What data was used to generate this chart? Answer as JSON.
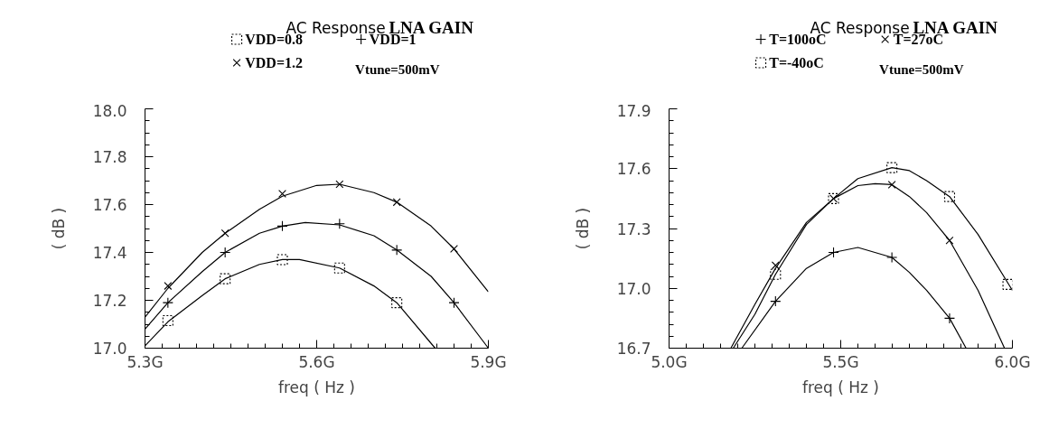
{
  "chart_data": [
    {
      "type": "line",
      "title": "AC Response",
      "subtitle": "LNA GAIN",
      "xlabel": "freq ( Hz )",
      "ylabel": "( dB )",
      "annotations": [
        "Vtune=500mV"
      ],
      "xlim": [
        5.3,
        5.9
      ],
      "ylim": [
        17.0,
        18.0
      ],
      "grid": false,
      "legend": "top",
      "xticks": [
        {
          "value": 5.3,
          "label": "5.3G"
        },
        {
          "value": 5.33,
          "label": null
        },
        {
          "value": 5.36,
          "label": null
        },
        {
          "value": 5.39,
          "label": null
        },
        {
          "value": 5.42,
          "label": null
        },
        {
          "value": 5.45,
          "label": null
        },
        {
          "value": 5.48,
          "label": null
        },
        {
          "value": 5.51,
          "label": null
        },
        {
          "value": 5.54,
          "label": null
        },
        {
          "value": 5.57,
          "label": null
        },
        {
          "value": 5.6,
          "label": "5.6G"
        },
        {
          "value": 5.63,
          "label": null
        },
        {
          "value": 5.66,
          "label": null
        },
        {
          "value": 5.69,
          "label": null
        },
        {
          "value": 5.72,
          "label": null
        },
        {
          "value": 5.75,
          "label": null
        },
        {
          "value": 5.78,
          "label": null
        },
        {
          "value": 5.81,
          "label": null
        },
        {
          "value": 5.84,
          "label": null
        },
        {
          "value": 5.87,
          "label": null
        },
        {
          "value": 5.9,
          "label": "5.9G"
        }
      ],
      "yticks": [
        {
          "value": 17.0,
          "label": "17.0"
        },
        {
          "value": 17.05,
          "label": null
        },
        {
          "value": 17.1,
          "label": null
        },
        {
          "value": 17.15,
          "label": null
        },
        {
          "value": 17.2,
          "label": "17.2"
        },
        {
          "value": 17.25,
          "label": null
        },
        {
          "value": 17.3,
          "label": null
        },
        {
          "value": 17.35,
          "label": null
        },
        {
          "value": 17.4,
          "label": "17.4"
        },
        {
          "value": 17.45,
          "label": null
        },
        {
          "value": 17.5,
          "label": null
        },
        {
          "value": 17.55,
          "label": null
        },
        {
          "value": 17.6,
          "label": "17.6"
        },
        {
          "value": 17.65,
          "label": null
        },
        {
          "value": 17.7,
          "label": null
        },
        {
          "value": 17.75,
          "label": null
        },
        {
          "value": 17.8,
          "label": "17.8"
        },
        {
          "value": 17.85,
          "label": null
        },
        {
          "value": 17.9,
          "label": null
        },
        {
          "value": 17.95,
          "label": null
        },
        {
          "value": 18.0,
          "label": "18.0"
        }
      ],
      "series": [
        {
          "color": "#000000",
          "marker": "none",
          "x": [
            5.3,
            5.34,
            5.4,
            5.44,
            5.5,
            5.54,
            5.6,
            5.64,
            5.7,
            5.74,
            5.8,
            5.84,
            5.9
          ],
          "values": [
            17.13,
            17.25,
            17.4,
            17.48,
            17.58,
            17.635,
            17.68,
            17.685,
            17.65,
            17.61,
            17.51,
            17.415,
            17.235
          ]
        },
        {
          "color": "#000000",
          "marker": "none",
          "x": [
            5.3,
            5.34,
            5.4,
            5.44,
            5.5,
            5.54,
            5.58,
            5.64,
            5.7,
            5.74,
            5.8,
            5.84,
            5.9
          ],
          "values": [
            17.08,
            17.19,
            17.32,
            17.4,
            17.48,
            17.51,
            17.525,
            17.515,
            17.47,
            17.41,
            17.3,
            17.19,
            17.0
          ]
        },
        {
          "color": "#000000",
          "marker": "none",
          "x": [
            5.3,
            5.34,
            5.4,
            5.44,
            5.5,
            5.54,
            5.57,
            5.64,
            5.7,
            5.74,
            5.807
          ],
          "values": [
            17.01,
            17.11,
            17.22,
            17.29,
            17.35,
            17.37,
            17.37,
            17.335,
            17.26,
            17.19,
            17.0
          ]
        },
        {
          "type": "scatter",
          "name": "VDD=0.8",
          "color": "#000000",
          "marker": "square",
          "x": [
            5.34,
            5.44,
            5.54,
            5.64,
            5.74
          ],
          "values": [
            17.115,
            17.29,
            17.37,
            17.335,
            17.19
          ]
        },
        {
          "type": "scatter",
          "name": "VDD=1",
          "color": "#000000",
          "marker": "cross",
          "x": [
            5.34,
            5.44,
            5.54,
            5.64,
            5.74,
            5.84
          ],
          "values": [
            17.19,
            17.4,
            17.51,
            17.52,
            17.41,
            17.19
          ]
        },
        {
          "type": "scatter",
          "name": "VDD=1.2",
          "color": "#000000",
          "marker": "x",
          "x": [
            5.34,
            5.44,
            5.54,
            5.64,
            5.74,
            5.84
          ],
          "values": [
            17.26,
            17.48,
            17.645,
            17.685,
            17.61,
            17.415
          ]
        }
      ]
    },
    {
      "type": "line",
      "title": "AC Response",
      "subtitle": "LNA GAIN",
      "xlabel": "freq ( Hz )",
      "ylabel": "( dB )",
      "annotations": [
        "Vtune=500mV"
      ],
      "xlim": [
        5.0,
        6.0
      ],
      "ylim": [
        16.7,
        17.9
      ],
      "grid": false,
      "legend": "top",
      "xticks": [
        {
          "value": 5.0,
          "label": "5.0G"
        },
        {
          "value": 5.05,
          "label": null
        },
        {
          "value": 5.1,
          "label": null
        },
        {
          "value": 5.15,
          "label": null
        },
        {
          "value": 5.2,
          "label": null
        },
        {
          "value": 5.25,
          "label": null
        },
        {
          "value": 5.3,
          "label": null
        },
        {
          "value": 5.35,
          "label": null
        },
        {
          "value": 5.4,
          "label": null
        },
        {
          "value": 5.45,
          "label": null
        },
        {
          "value": 5.5,
          "label": "5.5G"
        },
        {
          "value": 5.55,
          "label": null
        },
        {
          "value": 5.6,
          "label": null
        },
        {
          "value": 5.65,
          "label": null
        },
        {
          "value": 5.7,
          "label": null
        },
        {
          "value": 5.75,
          "label": null
        },
        {
          "value": 5.8,
          "label": null
        },
        {
          "value": 5.85,
          "label": null
        },
        {
          "value": 5.9,
          "label": null
        },
        {
          "value": 5.95,
          "label": null
        },
        {
          "value": 6.0,
          "label": "6.0G"
        }
      ],
      "yticks": [
        {
          "value": 16.7,
          "label": "16.7"
        },
        {
          "value": 16.76,
          "label": null
        },
        {
          "value": 16.82,
          "label": null
        },
        {
          "value": 16.88,
          "label": null
        },
        {
          "value": 16.94,
          "label": null
        },
        {
          "value": 17.0,
          "label": "17.0"
        },
        {
          "value": 17.06,
          "label": null
        },
        {
          "value": 17.12,
          "label": null
        },
        {
          "value": 17.18,
          "label": null
        },
        {
          "value": 17.24,
          "label": null
        },
        {
          "value": 17.3,
          "label": "17.3"
        },
        {
          "value": 17.36,
          "label": null
        },
        {
          "value": 17.42,
          "label": null
        },
        {
          "value": 17.48,
          "label": null
        },
        {
          "value": 17.54,
          "label": null
        },
        {
          "value": 17.6,
          "label": "17.6"
        },
        {
          "value": 17.66,
          "label": null
        },
        {
          "value": 17.72,
          "label": null
        },
        {
          "value": 17.78,
          "label": null
        },
        {
          "value": 17.84,
          "label": null
        },
        {
          "value": 17.9,
          "label": "17.9"
        }
      ],
      "series": [
        {
          "color": "#000000",
          "marker": "none",
          "x": [
            5.187,
            5.25,
            5.31,
            5.4,
            5.479,
            5.55,
            5.649,
            5.7,
            5.75,
            5.817,
            5.9,
            6.0
          ],
          "values": [
            16.7,
            16.87,
            17.07,
            17.32,
            17.45,
            17.55,
            17.605,
            17.59,
            17.54,
            17.46,
            17.27,
            16.99
          ]
        },
        {
          "color": "#000000",
          "marker": "none",
          "x": [
            5.18,
            5.25,
            5.31,
            5.4,
            5.479,
            5.55,
            5.6,
            5.649,
            5.7,
            5.75,
            5.817,
            5.9,
            5.977
          ],
          "values": [
            16.7,
            16.92,
            17.1,
            17.33,
            17.45,
            17.515,
            17.525,
            17.52,
            17.46,
            17.38,
            17.24,
            16.99,
            16.7
          ]
        },
        {
          "color": "#000000",
          "marker": "none",
          "x": [
            5.212,
            5.31,
            5.4,
            5.479,
            5.55,
            5.649,
            5.7,
            5.75,
            5.817,
            5.865
          ],
          "values": [
            16.7,
            16.935,
            17.1,
            17.18,
            17.205,
            17.155,
            17.08,
            16.99,
            16.85,
            16.7
          ]
        },
        {
          "type": "scatter",
          "name": "T=100oC",
          "color": "#000000",
          "marker": "cross",
          "x": [
            5.31,
            5.479,
            5.649,
            5.817
          ],
          "values": [
            16.935,
            17.18,
            17.155,
            16.85
          ]
        },
        {
          "type": "scatter",
          "name": "T=27oC",
          "color": "#000000",
          "marker": "x",
          "x": [
            5.31,
            5.479,
            5.649,
            5.817
          ],
          "values": [
            17.115,
            17.45,
            17.52,
            17.24
          ]
        },
        {
          "type": "scatter",
          "name": "T=-40oC",
          "color": "#000000",
          "marker": "square",
          "x": [
            5.31,
            5.479,
            5.649,
            5.817,
            5.987
          ],
          "values": [
            17.07,
            17.45,
            17.605,
            17.46,
            17.02
          ]
        }
      ]
    }
  ]
}
